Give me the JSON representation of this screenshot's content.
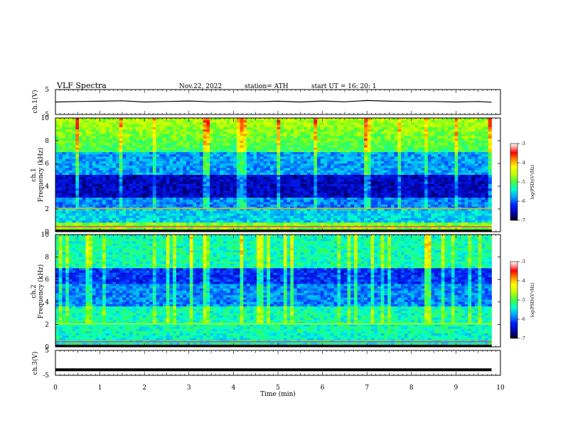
{
  "header": {
    "title": "VLF  Spectra",
    "date": "Nov.22, 2022",
    "station": "station= ATH",
    "start_ut": "start  UT  =    16: 20: 1"
  },
  "colors": {
    "psd_colormap": [
      "#000000",
      "#0000a0",
      "#0020ff",
      "#00a0ff",
      "#00ffd0",
      "#40ff40",
      "#c0ff00",
      "#ffff00",
      "#ff8000",
      "#ff0000",
      "#ffa0a0",
      "#ffffff"
    ],
    "trace": "#000000"
  },
  "chart_data": [
    {
      "type": "line",
      "panel": "ch1-voltage",
      "ylabel": "ch.1(V)",
      "ylim": [
        -5,
        5
      ],
      "y_ticks": [
        "5",
        "-5"
      ],
      "x": [
        0,
        0.5,
        1,
        1.5,
        2,
        2.5,
        3,
        3.5,
        4,
        4.5,
        5,
        5.5,
        6,
        6.5,
        7,
        7.5,
        8,
        8.5,
        9,
        9.5,
        9.8
      ],
      "values": [
        0,
        0.2,
        0.3,
        0.5,
        0,
        0.2,
        0.4,
        0.1,
        0.2,
        0.1,
        0.3,
        0,
        0.4,
        0.1,
        0.6,
        0.3,
        0.2,
        0.2,
        0,
        0.2,
        -0.1
      ]
    },
    {
      "type": "heatmap",
      "panel": "ch1-spectrogram",
      "ylabel": "ch.1\nFrequency (kHz)",
      "ylim": [
        0,
        10
      ],
      "y_ticks": [
        "0",
        "2",
        "4",
        "6",
        "8",
        "10"
      ],
      "colorbar": {
        "label": "log(PSD)(V²/Hz)",
        "range": [
          -7,
          -3
        ],
        "ticks": [
          "-3",
          "-4",
          "-5",
          "-6",
          "-7"
        ]
      }
    },
    {
      "type": "heatmap",
      "panel": "ch2-spectrogram",
      "ylabel": "ch.2\nFrequency (kHz)",
      "ylim": [
        0,
        10
      ],
      "y_ticks": [
        "0",
        "2",
        "4",
        "6",
        "8",
        "10"
      ],
      "colorbar": {
        "label": "log(PSD)(V²/Hz)",
        "range": [
          -7,
          -3
        ],
        "ticks": [
          "-3",
          "-4",
          "-5",
          "-6",
          "-7"
        ]
      }
    },
    {
      "type": "line",
      "panel": "ch3-voltage",
      "ylabel": "ch.3(V)",
      "ylim": [
        -5,
        5
      ],
      "y_ticks": [
        "5",
        "-5"
      ],
      "x": [
        0,
        9.8
      ],
      "values": [
        -2.8,
        -2.8
      ]
    }
  ],
  "x_axis": {
    "label": "Time  (min)",
    "range": [
      0,
      10
    ],
    "ticks": [
      "0",
      "1",
      "2",
      "3",
      "4",
      "5",
      "6",
      "7",
      "8",
      "9",
      "10"
    ]
  }
}
